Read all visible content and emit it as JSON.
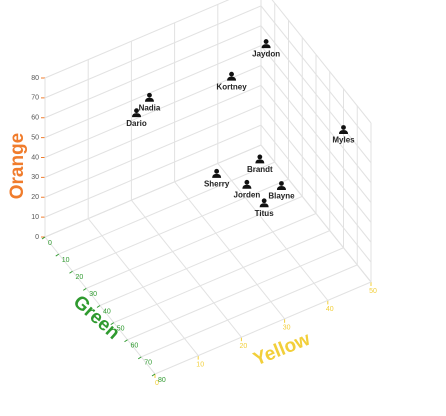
{
  "chart_data": {
    "type": "scatter3d",
    "x_label": "Yellow",
    "y_label": "Orange",
    "z_label": "Green",
    "x_color": "#f2cf3a",
    "y_color": "#f07c2c",
    "z_color": "#2f9a2f",
    "xlim": [
      0,
      50
    ],
    "xticks": [
      0,
      10,
      20,
      30,
      40,
      50
    ],
    "ylim": [
      0,
      80
    ],
    "yticks": [
      0,
      10,
      20,
      30,
      40,
      50,
      60,
      70,
      80
    ],
    "zlim": [
      0,
      80
    ],
    "zticks": [
      0,
      10,
      20,
      30,
      40,
      50,
      60,
      70,
      80
    ],
    "grid": true,
    "points": [
      {
        "name": "Jaydon",
        "x": 48,
        "y": 61,
        "z": 10
      },
      {
        "name": "Kortney",
        "x": 40,
        "y": 52,
        "z": 10
      },
      {
        "name": "Nadia",
        "x": 21,
        "y": 59,
        "z": 10
      },
      {
        "name": "Dario",
        "x": 18,
        "y": 54,
        "z": 10
      },
      {
        "name": "Myles",
        "x": 50,
        "y": 59,
        "z": 60
      },
      {
        "name": "Brandt",
        "x": 37,
        "y": 39,
        "z": 40
      },
      {
        "name": "Sherry",
        "x": 27,
        "y": 41,
        "z": 40
      },
      {
        "name": "Jorden",
        "x": 34,
        "y": 29,
        "z": 40
      },
      {
        "name": "Blayne",
        "x": 42,
        "y": 21,
        "z": 40
      },
      {
        "name": "Titus",
        "x": 38,
        "y": 16,
        "z": 40
      }
    ]
  }
}
